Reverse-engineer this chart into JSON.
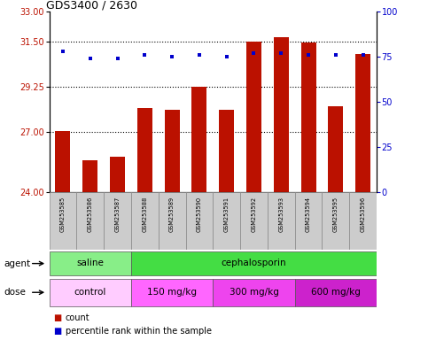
{
  "title": "GDS3400 / 2630",
  "samples": [
    "GSM253585",
    "GSM253586",
    "GSM253587",
    "GSM253588",
    "GSM253589",
    "GSM253590",
    "GSM253591",
    "GSM253592",
    "GSM253593",
    "GSM253594",
    "GSM253595",
    "GSM253596"
  ],
  "bar_values": [
    27.05,
    25.6,
    25.75,
    28.2,
    28.1,
    29.25,
    28.1,
    31.5,
    31.75,
    31.45,
    28.3,
    30.9
  ],
  "dot_values": [
    78,
    74,
    74,
    76,
    75,
    76,
    75,
    77,
    77,
    76,
    76,
    76
  ],
  "bar_color": "#bb1100",
  "dot_color": "#0000cc",
  "ylim_left": [
    24,
    33
  ],
  "ylim_right": [
    0,
    100
  ],
  "yticks_left": [
    24,
    27,
    29.25,
    31.5,
    33
  ],
  "yticks_right": [
    0,
    25,
    50,
    75,
    100
  ],
  "hlines": [
    27,
    29.25,
    31.5
  ],
  "agent_labels": [
    [
      "saline",
      0,
      3
    ],
    [
      "cephalosporin",
      3,
      12
    ]
  ],
  "dose_labels": [
    [
      "control",
      0,
      3
    ],
    [
      "150 mg/kg",
      3,
      6
    ],
    [
      "300 mg/kg",
      6,
      9
    ],
    [
      "600 mg/kg",
      9,
      12
    ]
  ],
  "agent_colors": [
    "#88ee88",
    "#44dd44"
  ],
  "dose_colors": [
    "#ffccff",
    "#ff66ff",
    "#ee44ee",
    "#cc22cc"
  ],
  "legend_count_color": "#bb1100",
  "legend_dot_color": "#0000cc",
  "background_color": "#ffffff",
  "plot_bg_color": "#ffffff",
  "label_bg_color": "#cccccc"
}
